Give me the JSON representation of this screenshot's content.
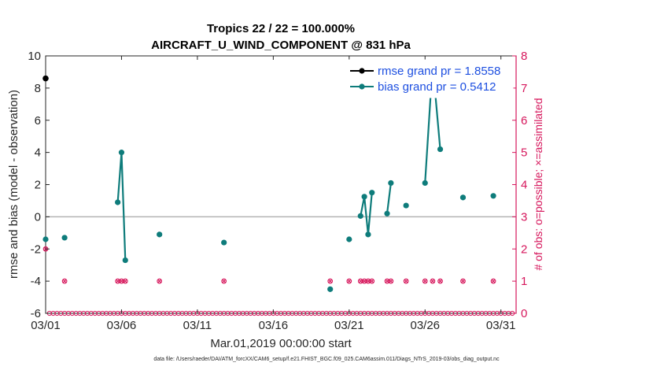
{
  "chart_data": {
    "type": "line",
    "title_line1": "Tropics 22 / 22 = 100.000%",
    "title_line2": "AIRCRAFT_U_WIND_COMPONENT @ 831 hPa",
    "xlabel": "Mar.01,2019 00:00:00 start",
    "ylabel_left": "rmse and bias (model - observation)",
    "ylabel_right": "# of obs: o=possible; ×=assimilated",
    "ylim_left": [
      -6,
      10
    ],
    "ylim_right": [
      0,
      8
    ],
    "xlim": [
      0,
      31
    ],
    "x_unit": "days since Mar.01,2019 00:00:00",
    "yticks_left": [
      "-6",
      "-4",
      "-2",
      "0",
      "2",
      "4",
      "6",
      "8",
      "10"
    ],
    "yticks_right": [
      "0",
      "1",
      "2",
      "3",
      "4",
      "5",
      "6",
      "7",
      "8"
    ],
    "xticks": [
      {
        "x": 0,
        "label": "03/01"
      },
      {
        "x": 5,
        "label": "03/06"
      },
      {
        "x": 10,
        "label": "03/11"
      },
      {
        "x": 15,
        "label": "03/16"
      },
      {
        "x": 20,
        "label": "03/21"
      },
      {
        "x": 25,
        "label": "03/26"
      },
      {
        "x": 30,
        "label": "03/31"
      }
    ],
    "zero_line": 0,
    "grid": false,
    "legend_position": "top-right",
    "series": [
      {
        "name": "rmse grand pr = 1.8558",
        "color": "#000000",
        "axis": "left",
        "points": [
          [
            0,
            8.6
          ]
        ]
      },
      {
        "name": "bias grand pr = 0.5412",
        "color": "#0e7c7b",
        "axis": "left",
        "points": [
          [
            0,
            -1.4
          ],
          [
            1.25,
            -1.3
          ],
          [
            4.75,
            0.9
          ],
          [
            5.0,
            4.0
          ],
          [
            5.25,
            -2.7
          ],
          [
            7.5,
            -1.1
          ],
          [
            11.75,
            -1.6
          ],
          [
            18.75,
            -4.5
          ],
          [
            20.0,
            -1.4
          ],
          [
            20.75,
            0.05
          ],
          [
            21.0,
            1.25
          ],
          [
            21.25,
            -1.1
          ],
          [
            21.5,
            1.5
          ],
          [
            22.5,
            0.2
          ],
          [
            22.75,
            2.1
          ],
          [
            23.75,
            0.7
          ],
          [
            25.0,
            2.1
          ],
          [
            25.5,
            9.5
          ],
          [
            26.0,
            4.2
          ],
          [
            27.5,
            1.2
          ],
          [
            29.5,
            1.3
          ]
        ],
        "connected_runs": [
          [
            2,
            4
          ],
          [
            9,
            12
          ],
          [
            13,
            14
          ],
          [
            16,
            18
          ]
        ]
      },
      {
        "name": "obs possible",
        "color": "#d6175c",
        "axis": "right",
        "marker": "o",
        "points": [
          [
            0,
            2
          ],
          [
            1.25,
            1
          ],
          [
            4.75,
            1
          ],
          [
            5.0,
            1
          ],
          [
            5.25,
            1
          ],
          [
            7.5,
            1
          ],
          [
            11.75,
            1
          ],
          [
            18.75,
            1
          ],
          [
            20.0,
            1
          ],
          [
            20.75,
            1
          ],
          [
            21.0,
            1
          ],
          [
            21.25,
            1
          ],
          [
            21.5,
            1
          ],
          [
            22.5,
            1
          ],
          [
            22.75,
            1
          ],
          [
            23.75,
            1
          ],
          [
            25.0,
            1
          ],
          [
            25.5,
            1
          ],
          [
            26.0,
            1
          ],
          [
            27.5,
            1
          ],
          [
            29.5,
            1
          ]
        ]
      },
      {
        "name": "obs assimilated",
        "color": "#d6175c",
        "axis": "right",
        "marker": "x",
        "points": [
          [
            0,
            2
          ],
          [
            1.25,
            1
          ],
          [
            4.75,
            1
          ],
          [
            5.0,
            1
          ],
          [
            5.25,
            1
          ],
          [
            7.5,
            1
          ],
          [
            11.75,
            1
          ],
          [
            18.75,
            1
          ],
          [
            20.0,
            1
          ],
          [
            20.75,
            1
          ],
          [
            21.0,
            1
          ],
          [
            21.25,
            1
          ],
          [
            21.5,
            1
          ],
          [
            22.5,
            1
          ],
          [
            22.75,
            1
          ],
          [
            23.75,
            1
          ],
          [
            25.0,
            1
          ],
          [
            25.5,
            1
          ],
          [
            26.0,
            1
          ],
          [
            27.5,
            1
          ],
          [
            29.5,
            1
          ]
        ]
      }
    ],
    "zero_count_marks": {
      "color": "#d6175c",
      "x_start": 0.25,
      "x_end": 30.75,
      "step": 0.25,
      "y": 0
    }
  },
  "footer": {
    "text": "data file: /Users/raeder/DAI/ATM_forcXX/CAM6_setup/f.e21.FHIST_BGC.f09_025.CAM6assim.011/Diags_NTrS_2019-03/obs_diag_output.nc"
  }
}
